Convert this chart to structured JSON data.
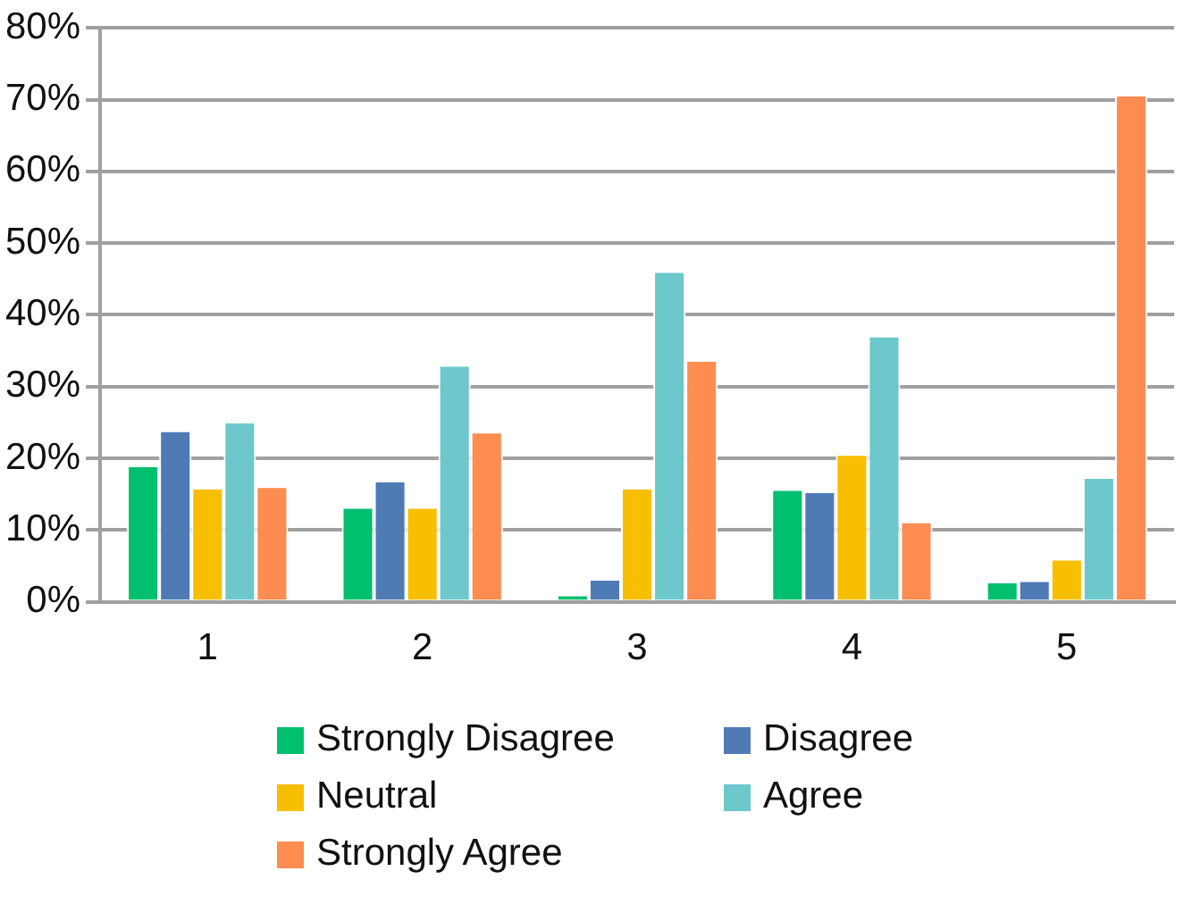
{
  "chart_data": {
    "type": "bar",
    "categories": [
      "1",
      "2",
      "3",
      "4",
      "5"
    ],
    "series": [
      {
        "name": "Strongly Disagree",
        "color": "#00bf6f",
        "values": [
          19.0,
          13.2,
          1.0,
          15.7,
          2.8
        ]
      },
      {
        "name": "Disagree",
        "color": "#4f7bb5",
        "values": [
          23.9,
          16.9,
          3.2,
          15.4,
          3.0
        ]
      },
      {
        "name": "Neutral",
        "color": "#f8be00",
        "values": [
          15.9,
          13.2,
          15.9,
          20.6,
          6.0
        ]
      },
      {
        "name": "Agree",
        "color": "#6dc8cc",
        "values": [
          25.1,
          33.0,
          46.1,
          37.1,
          17.4
        ]
      },
      {
        "name": "Strongly Agree",
        "color": "#ff8c50",
        "values": [
          16.1,
          23.7,
          33.7,
          11.2,
          70.7
        ]
      }
    ],
    "ylim": [
      0,
      80
    ],
    "yticks": [
      {
        "value": 0,
        "label": "0%"
      },
      {
        "value": 10,
        "label": "10%"
      },
      {
        "value": 20,
        "label": "20%"
      },
      {
        "value": 30,
        "label": "30%"
      },
      {
        "value": 40,
        "label": "40%"
      },
      {
        "value": 50,
        "label": "50%"
      },
      {
        "value": 60,
        "label": "60%"
      },
      {
        "value": 70,
        "label": "70%"
      },
      {
        "value": 80,
        "label": "80%"
      }
    ],
    "grid": "y",
    "legend": "bottom"
  }
}
